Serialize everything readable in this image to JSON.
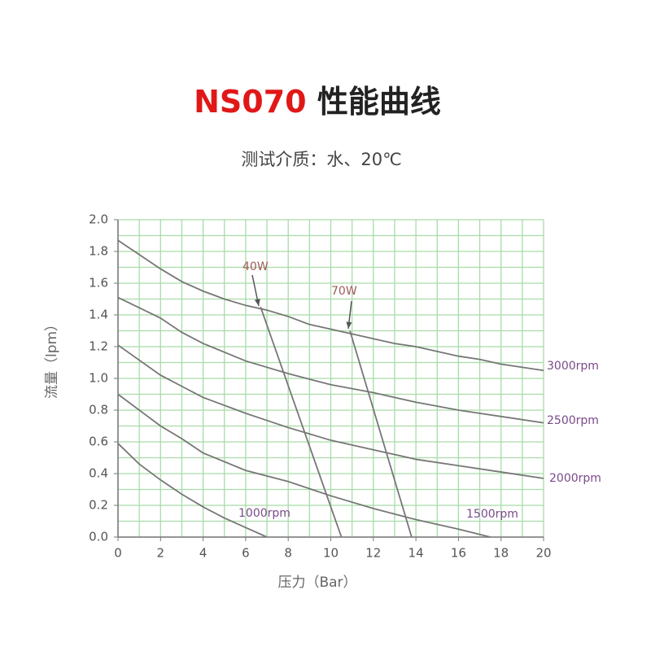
{
  "chart_data": {
    "type": "line",
    "title": [
      "NS070",
      "性能曲线"
    ],
    "subtitle": "测试介质：水、20℃",
    "x_label": "压力（Bar）",
    "y_label": "流量（lpm）",
    "xlim": [
      0,
      20
    ],
    "ylim": [
      0,
      2.0
    ],
    "xticks": [
      0,
      2,
      4,
      6,
      8,
      10,
      12,
      14,
      16,
      18,
      20
    ],
    "yticks": [
      {
        "value": 0,
        "label": "0.0"
      },
      0.2,
      0.4,
      0.6,
      0.8,
      {
        "value": 1,
        "label": "1.0"
      },
      1.2,
      1.4,
      1.6,
      1.8,
      {
        "value": 2,
        "label": "2.0"
      }
    ],
    "x_grid": [
      0,
      1,
      2,
      3,
      4,
      5,
      6,
      7,
      8,
      9,
      10,
      11,
      12,
      13,
      14,
      15,
      16,
      17,
      18,
      19,
      20
    ],
    "y_grid": [
      0,
      0.1,
      0.2,
      0.3,
      0.4,
      0.5,
      0.6,
      0.7,
      0.8,
      0.9,
      1.0,
      1.1,
      1.2,
      1.3,
      1.4,
      1.5,
      1.6,
      1.7,
      1.8,
      1.9,
      2.0
    ],
    "grid": true,
    "grid_color": "#a8dca8",
    "series": [
      {
        "name": "3000rpm",
        "color": "#777777",
        "label_color": "#7a4a8a",
        "x": [
          0,
          1,
          2,
          3,
          4,
          5,
          6,
          7,
          8,
          9,
          10,
          11,
          12,
          13,
          14,
          15,
          16,
          17,
          18,
          19,
          20
        ],
        "values": [
          1.87,
          1.78,
          1.69,
          1.61,
          1.55,
          1.5,
          1.46,
          1.43,
          1.39,
          1.34,
          1.31,
          1.28,
          1.25,
          1.22,
          1.2,
          1.17,
          1.14,
          1.12,
          1.09,
          1.07,
          1.05
        ]
      },
      {
        "name": "2500rpm",
        "color": "#777777",
        "label_color": "#7a4a8a",
        "x": [
          0,
          2,
          3,
          4,
          6,
          8,
          10,
          12,
          14,
          16,
          18,
          20
        ],
        "values": [
          1.51,
          1.38,
          1.29,
          1.22,
          1.11,
          1.03,
          0.96,
          0.91,
          0.85,
          0.8,
          0.76,
          0.72
        ]
      },
      {
        "name": "2000rpm",
        "color": "#777777",
        "label_color": "#7a4a8a",
        "x": [
          0,
          2,
          3,
          4,
          6,
          8,
          10,
          12,
          14,
          16,
          18,
          20
        ],
        "values": [
          1.21,
          1.02,
          0.95,
          0.88,
          0.78,
          0.69,
          0.61,
          0.55,
          0.49,
          0.45,
          0.41,
          0.37
        ]
      },
      {
        "name": "1500rpm",
        "color": "#777777",
        "label_color": "#7a4a8a",
        "x": [
          0,
          2,
          3,
          4,
          6,
          8,
          10,
          12,
          14,
          16,
          17.5
        ],
        "values": [
          0.9,
          0.7,
          0.62,
          0.53,
          0.42,
          0.35,
          0.26,
          0.18,
          0.11,
          0.05,
          0
        ]
      },
      {
        "name": "1000rpm",
        "color": "#777777",
        "label_color": "#7a4a8a",
        "x": [
          0,
          1,
          2,
          3,
          4,
          5,
          6,
          7
        ],
        "values": [
          0.59,
          0.46,
          0.36,
          0.27,
          0.19,
          0.12,
          0.06,
          0
        ]
      },
      {
        "name": "40W",
        "color": "#777777",
        "label_color": "#a05a5a",
        "x": [
          6.7,
          10.5
        ],
        "values": [
          1.45,
          0
        ]
      },
      {
        "name": "70W",
        "color": "#777777",
        "label_color": "#a05a5a",
        "x": [
          10.9,
          13.8
        ],
        "values": [
          1.3,
          0
        ]
      }
    ]
  }
}
